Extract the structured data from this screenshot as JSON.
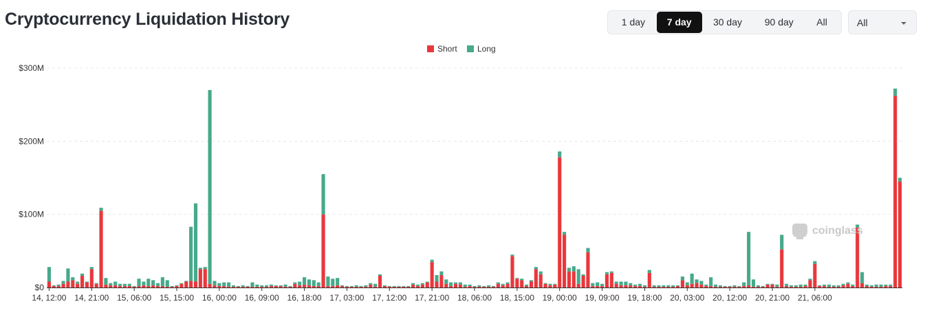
{
  "header": {
    "title": "Cryptocurrency Liquidation History",
    "ranges": [
      "1 day",
      "7 day",
      "30 day",
      "90 day",
      "All"
    ],
    "active_range": "7 day",
    "select_value": "All"
  },
  "watermark": "coinglass",
  "colors": {
    "short": "#e8383d",
    "long": "#47a98b",
    "grid": "#e8e8e8",
    "active": "#111111"
  },
  "chart_data": {
    "type": "bar",
    "stacked": true,
    "legend": [
      {
        "name": "Short",
        "color": "#e8383d"
      },
      {
        "name": "Long",
        "color": "#47a98b"
      }
    ],
    "legend_position": "top-center",
    "y_ticks": [
      {
        "value": 0,
        "label": "$0"
      },
      {
        "value": 100,
        "label": "$100M"
      },
      {
        "value": 200,
        "label": "$200M"
      },
      {
        "value": 300,
        "label": "$300M"
      }
    ],
    "ylim": [
      0,
      300
    ],
    "y_unit": "$M",
    "x_tick_labels": [
      "14, 12:00",
      "14, 21:00",
      "15, 06:00",
      "15, 15:00",
      "16, 00:00",
      "16, 09:00",
      "16, 18:00",
      "17, 03:00",
      "17, 12:00",
      "17, 21:00",
      "18, 06:00",
      "18, 15:00",
      "19, 00:00",
      "19, 09:00",
      "19, 18:00",
      "20, 03:00",
      "20, 12:00",
      "20, 21:00",
      "21, 06:00"
    ],
    "x_tick_every": 9,
    "series": [
      {
        "name": "Short",
        "values": [
          8,
          2,
          2,
          5,
          8,
          10,
          5,
          16,
          7,
          25,
          5,
          105,
          4,
          3,
          3,
          2,
          2,
          2,
          1,
          2,
          3,
          2,
          3,
          2,
          2,
          1,
          1,
          2,
          5,
          8,
          9,
          8,
          25,
          25,
          5,
          3,
          2,
          2,
          1,
          1,
          1,
          1,
          1,
          1,
          1,
          1,
          1,
          2,
          2,
          2,
          1,
          1,
          5,
          3,
          4,
          3,
          2,
          2,
          100,
          2,
          2,
          3,
          2,
          1,
          1,
          1,
          1,
          1,
          4,
          1,
          16,
          2,
          1,
          1,
          1,
          1,
          1,
          4,
          2,
          4,
          7,
          35,
          8,
          17,
          5,
          2,
          5,
          4,
          1,
          2,
          1,
          1,
          1,
          1,
          1,
          5,
          3,
          5,
          43,
          12,
          10,
          2,
          8,
          25,
          18,
          5,
          3,
          4,
          178,
          72,
          22,
          22,
          5,
          16,
          48,
          2,
          2,
          2,
          18,
          20,
          5,
          3,
          3,
          3,
          2,
          2,
          1,
          20,
          1,
          1,
          1,
          1,
          1,
          2,
          10,
          3,
          5,
          6,
          4,
          2,
          2,
          1,
          1,
          1,
          1,
          1,
          1,
          2,
          3,
          1,
          1,
          1,
          4,
          4,
          1,
          52,
          2,
          1,
          1,
          1,
          2,
          10,
          32,
          2,
          2,
          1,
          1,
          1,
          3,
          5,
          2,
          82,
          6,
          2,
          1,
          1,
          1,
          2,
          2,
          262,
          145
        ]
      },
      {
        "name": "Long",
        "values": [
          20,
          1,
          2,
          4,
          18,
          4,
          3,
          3,
          1,
          3,
          1,
          4,
          9,
          3,
          5,
          3,
          3,
          3,
          1,
          10,
          5,
          10,
          7,
          4,
          12,
          9,
          1,
          1,
          1,
          1,
          74,
          107,
          2,
          3,
          265,
          6,
          4,
          5,
          6,
          2,
          1,
          2,
          1,
          6,
          3,
          2,
          2,
          2,
          1,
          1,
          3,
          1,
          2,
          5,
          10,
          8,
          8,
          5,
          55,
          13,
          10,
          10,
          1,
          1,
          1,
          2,
          1,
          2,
          2,
          4,
          2,
          1,
          1,
          1,
          1,
          1,
          1,
          2,
          2,
          2,
          1,
          3,
          9,
          5,
          6,
          5,
          2,
          3,
          3,
          2,
          1,
          2,
          1,
          2,
          1,
          2,
          2,
          2,
          2,
          1,
          2,
          2,
          2,
          3,
          4,
          1,
          2,
          1,
          8,
          4,
          5,
          7,
          20,
          2,
          6,
          4,
          5,
          3,
          3,
          2,
          3,
          5,
          5,
          3,
          2,
          3,
          2,
          4,
          2,
          2,
          2,
          2,
          2,
          1,
          5,
          4,
          14,
          5,
          5,
          2,
          12,
          3,
          2,
          1,
          1,
          2,
          1,
          5,
          73,
          10,
          2,
          1,
          1,
          1,
          3,
          20,
          3,
          2,
          2,
          3,
          2,
          2,
          4,
          1,
          2,
          3,
          2,
          2,
          2,
          2,
          2,
          4,
          15,
          2,
          2,
          3,
          3,
          2,
          2,
          10,
          5
        ]
      }
    ]
  }
}
